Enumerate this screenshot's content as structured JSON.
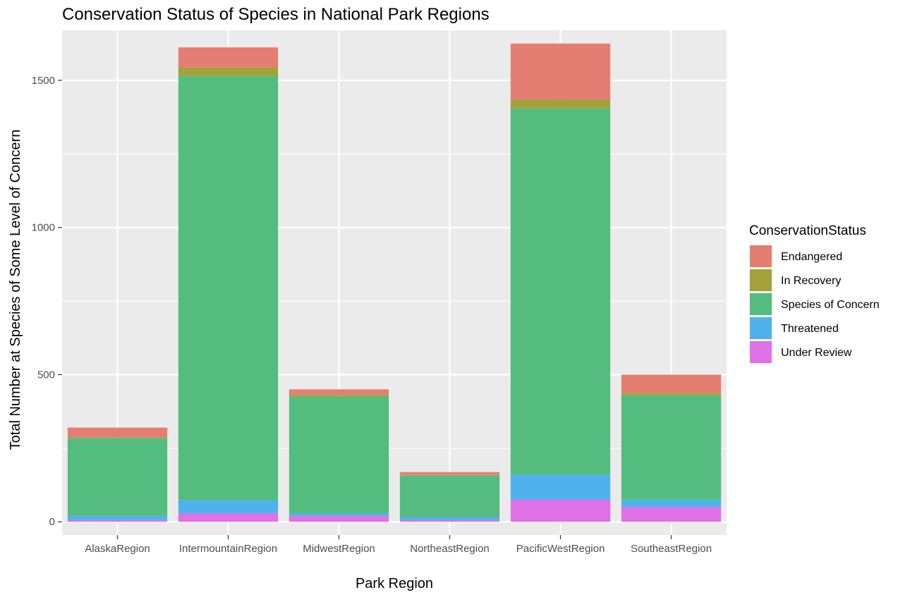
{
  "chart_data": {
    "type": "bar",
    "stacked": true,
    "title": "Conservation Status of Species in National Park Regions",
    "xlabel": "Park Region",
    "ylabel": "Total Number at Species of Some Level of Concern",
    "ylim": [
      -45,
      1670
    ],
    "yticks": [
      0,
      500,
      1000,
      1500
    ],
    "grid": true,
    "legend": {
      "title": "ConservationStatus",
      "position": "right"
    },
    "categories": [
      "AlaskaRegion",
      "IntermountainRegion",
      "MidwestRegion",
      "NortheastRegion",
      "PacificWestRegion",
      "SoutheastRegion"
    ],
    "series": [
      {
        "name": "Under Review",
        "color": "#DF72E6",
        "values": [
          6,
          28,
          20,
          6,
          75,
          50
        ]
      },
      {
        "name": "Threatened",
        "color": "#4FB2EC",
        "values": [
          14,
          45,
          9,
          10,
          85,
          24
        ]
      },
      {
        "name": "Species of Concern",
        "color": "#55BC7F",
        "values": [
          265,
          1442,
          397,
          142,
          1245,
          356
        ]
      },
      {
        "name": "In Recovery",
        "color": "#A3A23A",
        "values": [
          2,
          29,
          5,
          1,
          30,
          7
        ]
      },
      {
        "name": "Endangered",
        "color": "#E57E72",
        "values": [
          33,
          68,
          19,
          10,
          190,
          63
        ]
      }
    ]
  }
}
